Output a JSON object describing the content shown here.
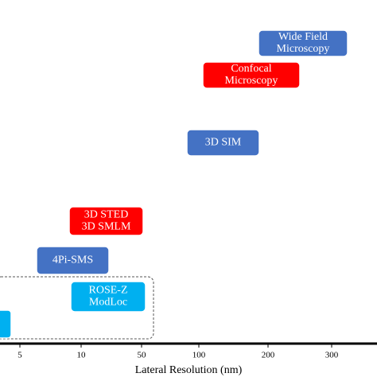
{
  "axis": {
    "title": "Lateral Resolution (nm)",
    "ticks": [
      "5",
      "10",
      "50",
      "100",
      "200",
      "300"
    ]
  },
  "nodes": [
    {
      "lines": [
        "Wide Field",
        "Microscopy"
      ],
      "color": "#4472c4"
    },
    {
      "lines": [
        "Confocal",
        "Microscopy"
      ],
      "color": "#ff0000"
    },
    {
      "lines": [
        "3D SIM"
      ],
      "color": "#4472c4"
    },
    {
      "lines": [
        "3D STED",
        "3D SMLM"
      ],
      "color": "#ff0000"
    },
    {
      "lines": [
        "4Pi-SMS"
      ],
      "color": "#4472c4"
    },
    {
      "lines": [
        "ROSE-Z",
        "ModLoc"
      ],
      "color": "#00b0f0"
    }
  ]
}
